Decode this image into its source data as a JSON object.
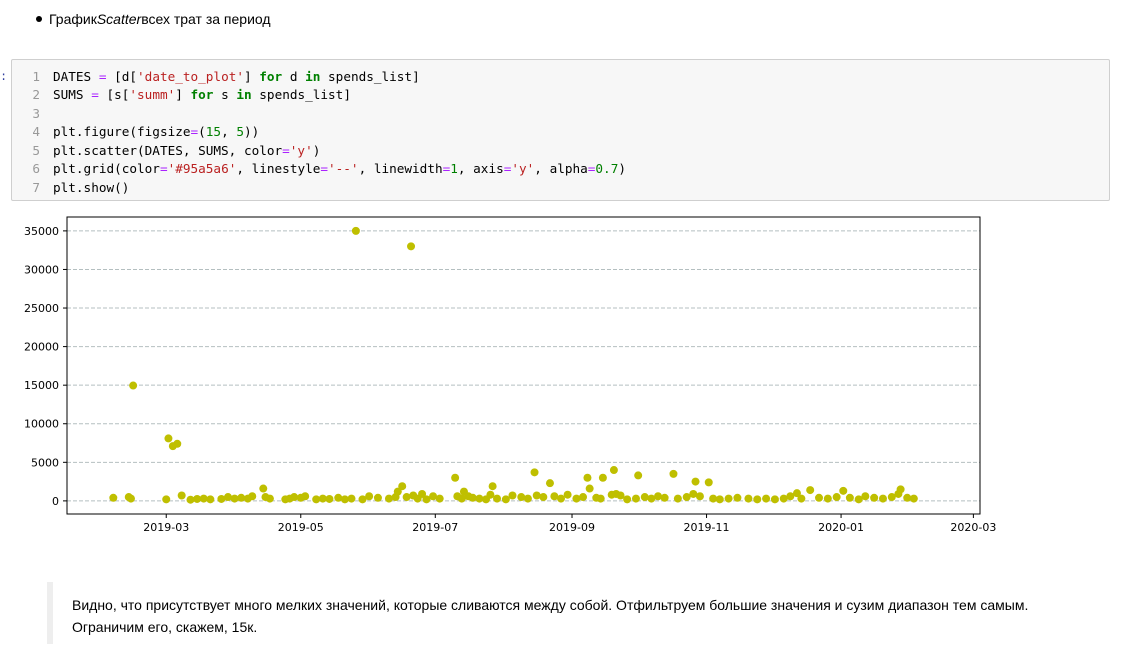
{
  "markdown_top": {
    "prefix": "График ",
    "emph": "Scatter",
    "suffix": " всех трат за период"
  },
  "prompt": ":",
  "code_cell": {
    "lines": [
      {
        "no": "1",
        "tokens": [
          [
            "default",
            "DATES "
          ],
          [
            "op",
            "="
          ],
          [
            "default",
            " [d["
          ],
          [
            "str",
            "'date_to_plot'"
          ],
          [
            "default",
            "] "
          ],
          [
            "kw",
            "for"
          ],
          [
            "default",
            " d "
          ],
          [
            "kw",
            "in"
          ],
          [
            "default",
            " spends_list]"
          ]
        ]
      },
      {
        "no": "2",
        "tokens": [
          [
            "default",
            "SUMS "
          ],
          [
            "op",
            "="
          ],
          [
            "default",
            " [s["
          ],
          [
            "str",
            "'summ'"
          ],
          [
            "default",
            "] "
          ],
          [
            "kw",
            "for"
          ],
          [
            "default",
            " s "
          ],
          [
            "kw",
            "in"
          ],
          [
            "default",
            " spends_list]"
          ]
        ]
      },
      {
        "no": "3",
        "tokens": []
      },
      {
        "no": "4",
        "tokens": [
          [
            "default",
            "plt.figure(figsize"
          ],
          [
            "op",
            "="
          ],
          [
            "default",
            "("
          ],
          [
            "num",
            "15"
          ],
          [
            "default",
            ", "
          ],
          [
            "num",
            "5"
          ],
          [
            "default",
            "))"
          ]
        ]
      },
      {
        "no": "5",
        "tokens": [
          [
            "default",
            "plt.scatter(DATES, SUMS, color"
          ],
          [
            "op",
            "="
          ],
          [
            "str",
            "'y'"
          ],
          [
            "default",
            ")"
          ]
        ]
      },
      {
        "no": "6",
        "tokens": [
          [
            "default",
            "plt.grid(color"
          ],
          [
            "op",
            "="
          ],
          [
            "str",
            "'#95a5a6'"
          ],
          [
            "default",
            ", linestyle"
          ],
          [
            "op",
            "="
          ],
          [
            "str",
            "'--'"
          ],
          [
            "default",
            ", linewidth"
          ],
          [
            "op",
            "="
          ],
          [
            "num",
            "1"
          ],
          [
            "default",
            ", axis"
          ],
          [
            "op",
            "="
          ],
          [
            "str",
            "'y'"
          ],
          [
            "default",
            ", alpha"
          ],
          [
            "op",
            "="
          ],
          [
            "num",
            "0.7"
          ],
          [
            "default",
            ")"
          ]
        ]
      },
      {
        "no": "7",
        "tokens": [
          [
            "default",
            "plt.show()"
          ]
        ]
      }
    ]
  },
  "chart_data": {
    "type": "scatter",
    "color": "#bfbf00",
    "grid_color": "#95a5a6",
    "grid": "y",
    "grid_style": "dashed",
    "xlim": [
      "2019-01-15",
      "2020-03-04"
    ],
    "ylim": [
      -1700,
      36800
    ],
    "xticks": [
      {
        "date": "2019-03-01",
        "label": "2019-03"
      },
      {
        "date": "2019-05-01",
        "label": "2019-05"
      },
      {
        "date": "2019-07-01",
        "label": "2019-07"
      },
      {
        "date": "2019-09-01",
        "label": "2019-09"
      },
      {
        "date": "2019-11-01",
        "label": "2019-11"
      },
      {
        "date": "2020-01-01",
        "label": "2020-01"
      },
      {
        "date": "2020-03-01",
        "label": "2020-03"
      }
    ],
    "yticks": [
      0,
      5000,
      10000,
      15000,
      20000,
      25000,
      30000,
      35000
    ],
    "points": [
      [
        "2019-02-05",
        400
      ],
      [
        "2019-02-12",
        500
      ],
      [
        "2019-02-13",
        300
      ],
      [
        "2019-02-14",
        14950
      ],
      [
        "2019-03-01",
        200
      ],
      [
        "2019-03-02",
        8100
      ],
      [
        "2019-03-04",
        7100
      ],
      [
        "2019-03-06",
        7400
      ],
      [
        "2019-03-08",
        700
      ],
      [
        "2019-03-12",
        150
      ],
      [
        "2019-03-15",
        250
      ],
      [
        "2019-03-18",
        300
      ],
      [
        "2019-03-21",
        200
      ],
      [
        "2019-03-26",
        250
      ],
      [
        "2019-03-29",
        500
      ],
      [
        "2019-04-01",
        300
      ],
      [
        "2019-04-04",
        400
      ],
      [
        "2019-04-07",
        300
      ],
      [
        "2019-04-09",
        600
      ],
      [
        "2019-04-14",
        1600
      ],
      [
        "2019-04-15",
        500
      ],
      [
        "2019-04-17",
        300
      ],
      [
        "2019-04-24",
        200
      ],
      [
        "2019-04-26",
        300
      ],
      [
        "2019-04-28",
        500
      ],
      [
        "2019-05-01",
        400
      ],
      [
        "2019-05-03",
        600
      ],
      [
        "2019-05-08",
        200
      ],
      [
        "2019-05-11",
        300
      ],
      [
        "2019-05-14",
        250
      ],
      [
        "2019-05-18",
        400
      ],
      [
        "2019-05-21",
        200
      ],
      [
        "2019-05-24",
        300
      ],
      [
        "2019-05-26",
        35000
      ],
      [
        "2019-05-29",
        200
      ],
      [
        "2019-06-01",
        600
      ],
      [
        "2019-06-05",
        400
      ],
      [
        "2019-06-10",
        300
      ],
      [
        "2019-06-13",
        500
      ],
      [
        "2019-06-14",
        1200
      ],
      [
        "2019-06-16",
        1900
      ],
      [
        "2019-06-18",
        500
      ],
      [
        "2019-06-20",
        33000
      ],
      [
        "2019-06-21",
        700
      ],
      [
        "2019-06-23",
        300
      ],
      [
        "2019-06-25",
        900
      ],
      [
        "2019-06-27",
        200
      ],
      [
        "2019-06-30",
        600
      ],
      [
        "2019-07-03",
        300
      ],
      [
        "2019-07-10",
        3000
      ],
      [
        "2019-07-11",
        600
      ],
      [
        "2019-07-13",
        300
      ],
      [
        "2019-07-14",
        1200
      ],
      [
        "2019-07-16",
        600
      ],
      [
        "2019-07-18",
        400
      ],
      [
        "2019-07-21",
        300
      ],
      [
        "2019-07-24",
        200
      ],
      [
        "2019-07-26",
        800
      ],
      [
        "2019-07-27",
        1900
      ],
      [
        "2019-07-29",
        300
      ],
      [
        "2019-08-02",
        200
      ],
      [
        "2019-08-05",
        700
      ],
      [
        "2019-08-09",
        500
      ],
      [
        "2019-08-12",
        300
      ],
      [
        "2019-08-15",
        3700
      ],
      [
        "2019-08-16",
        700
      ],
      [
        "2019-08-19",
        500
      ],
      [
        "2019-08-22",
        2300
      ],
      [
        "2019-08-24",
        600
      ],
      [
        "2019-08-27",
        300
      ],
      [
        "2019-08-30",
        800
      ],
      [
        "2019-09-03",
        300
      ],
      [
        "2019-09-06",
        500
      ],
      [
        "2019-09-08",
        3000
      ],
      [
        "2019-09-09",
        1600
      ],
      [
        "2019-09-12",
        400
      ],
      [
        "2019-09-14",
        300
      ],
      [
        "2019-09-15",
        3000
      ],
      [
        "2019-09-19",
        800
      ],
      [
        "2019-09-20",
        4000
      ],
      [
        "2019-09-21",
        900
      ],
      [
        "2019-09-23",
        700
      ],
      [
        "2019-09-26",
        200
      ],
      [
        "2019-09-30",
        300
      ],
      [
        "2019-10-01",
        3300
      ],
      [
        "2019-10-04",
        500
      ],
      [
        "2019-10-07",
        300
      ],
      [
        "2019-10-10",
        600
      ],
      [
        "2019-10-13",
        400
      ],
      [
        "2019-10-17",
        3500
      ],
      [
        "2019-10-19",
        300
      ],
      [
        "2019-10-23",
        500
      ],
      [
        "2019-10-26",
        900
      ],
      [
        "2019-10-27",
        2500
      ],
      [
        "2019-10-29",
        600
      ],
      [
        "2019-11-02",
        2400
      ],
      [
        "2019-11-04",
        300
      ],
      [
        "2019-11-07",
        200
      ],
      [
        "2019-11-11",
        300
      ],
      [
        "2019-11-15",
        400
      ],
      [
        "2019-11-20",
        300
      ],
      [
        "2019-11-24",
        200
      ],
      [
        "2019-11-28",
        300
      ],
      [
        "2019-12-02",
        200
      ],
      [
        "2019-12-06",
        300
      ],
      [
        "2019-12-09",
        600
      ],
      [
        "2019-12-12",
        1000
      ],
      [
        "2019-12-14",
        300
      ],
      [
        "2019-12-18",
        1400
      ],
      [
        "2019-12-22",
        400
      ],
      [
        "2019-12-26",
        300
      ],
      [
        "2019-12-30",
        500
      ],
      [
        "2020-01-02",
        1300
      ],
      [
        "2020-01-05",
        400
      ],
      [
        "2020-01-09",
        200
      ],
      [
        "2020-01-12",
        600
      ],
      [
        "2020-01-16",
        400
      ],
      [
        "2020-01-20",
        300
      ],
      [
        "2020-01-24",
        500
      ],
      [
        "2020-01-27",
        900
      ],
      [
        "2020-01-28",
        1500
      ],
      [
        "2020-01-31",
        400
      ],
      [
        "2020-02-03",
        300
      ]
    ]
  },
  "markdown_note": {
    "text": "Видно, что присутствует много мелких значений, которые сливаются между собой. Отфильтруем большие значения и сузим диапазон тем самым. Ограничим его, скажем, 15к."
  }
}
